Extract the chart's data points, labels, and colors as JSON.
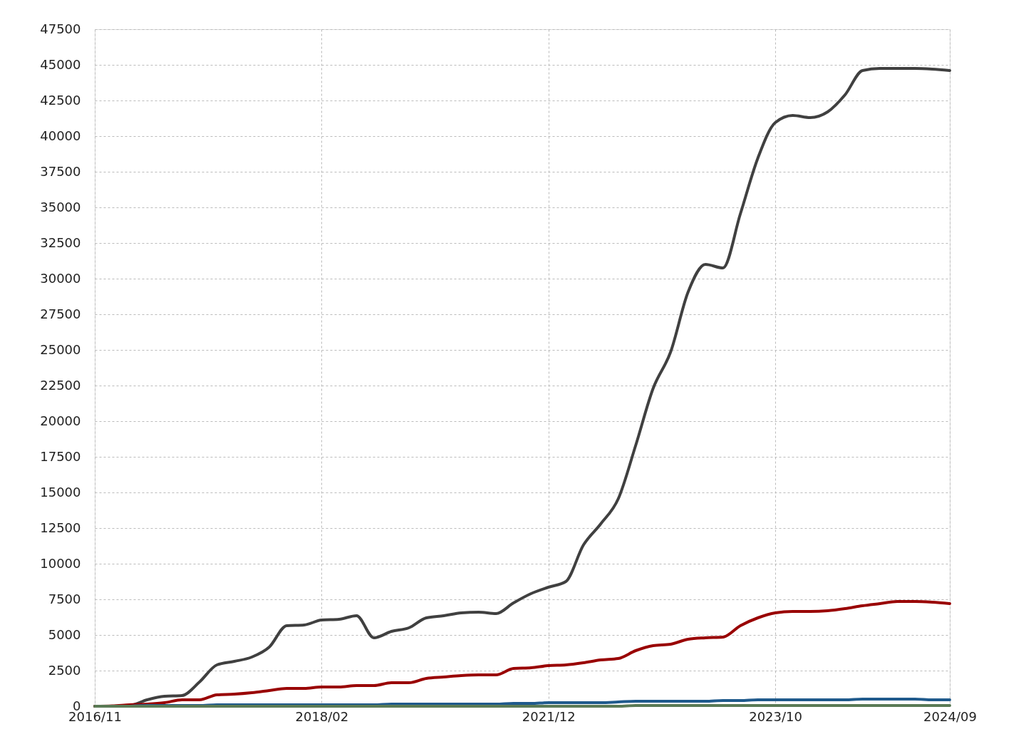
{
  "chart_data": {
    "type": "line",
    "categories": [
      "2016/11",
      null,
      null,
      null,
      null,
      null,
      null,
      null,
      null,
      null,
      null,
      null,
      null,
      "2018/02",
      null,
      null,
      null,
      null,
      null,
      null,
      null,
      null,
      null,
      null,
      null,
      null,
      "2021/12",
      null,
      null,
      null,
      null,
      null,
      null,
      null,
      null,
      null,
      null,
      null,
      null,
      "2023/10",
      null,
      null,
      null,
      null,
      null,
      null,
      null,
      null,
      null,
      "2024/09"
    ],
    "series": [
      {
        "color": "#404040",
        "values": [
          0,
          0,
          50,
          450,
          700,
          750,
          1700,
          2900,
          3150,
          3450,
          4150,
          5650,
          5700,
          6050,
          6100,
          6350,
          4800,
          5250,
          5500,
          6200,
          6350,
          6550,
          6600,
          6500,
          7250,
          7900,
          8350,
          8750,
          11300,
          12800,
          14550,
          18300,
          22300,
          24850,
          29050,
          31000,
          30750,
          34550,
          38450,
          40950,
          41450,
          41300,
          41700,
          42900,
          44600,
          44750,
          44750,
          44750,
          44700,
          44600
        ]
      },
      {
        "color": "#990000",
        "values": [
          0,
          30,
          100,
          150,
          250,
          450,
          450,
          800,
          850,
          950,
          1100,
          1250,
          1250,
          1350,
          1350,
          1450,
          1450,
          1650,
          1650,
          1950,
          2050,
          2150,
          2200,
          2200,
          2650,
          2700,
          2850,
          2900,
          3050,
          3250,
          3350,
          3900,
          4250,
          4350,
          4700,
          4800,
          4850,
          5650,
          6200,
          6550,
          6650,
          6650,
          6700,
          6850,
          7050,
          7200,
          7350,
          7350,
          7300,
          7200
        ]
      },
      {
        "color": "#1f5a8c",
        "values": [
          null,
          null,
          0,
          50,
          50,
          50,
          50,
          100,
          100,
          100,
          100,
          100,
          100,
          100,
          100,
          100,
          100,
          150,
          150,
          150,
          150,
          150,
          150,
          150,
          200,
          200,
          250,
          250,
          250,
          250,
          300,
          350,
          350,
          350,
          350,
          350,
          400,
          400,
          450,
          450,
          450,
          450,
          450,
          450,
          500,
          500,
          500,
          500,
          450,
          450
        ]
      },
      {
        "color": "#5a7a55",
        "values": [
          0,
          0,
          0,
          0,
          0,
          0,
          0,
          0,
          0,
          0,
          0,
          0,
          0,
          0,
          0,
          0,
          0,
          0,
          0,
          0,
          0,
          0,
          0,
          0,
          0,
          0,
          0,
          0,
          0,
          0,
          0,
          50,
          50,
          50,
          50,
          50,
          50,
          50,
          50,
          50,
          50,
          50,
          50,
          50,
          50,
          50,
          50,
          50,
          50,
          50
        ]
      }
    ],
    "ylim": [
      0,
      47500
    ],
    "yticks": [
      0,
      2500,
      5000,
      7500,
      10000,
      12500,
      15000,
      17500,
      20000,
      22500,
      25000,
      27500,
      30000,
      32500,
      35000,
      37500,
      40000,
      42500,
      45000,
      47500
    ],
    "grid": true,
    "legend": false,
    "marker": "none",
    "line_style": "solid"
  }
}
